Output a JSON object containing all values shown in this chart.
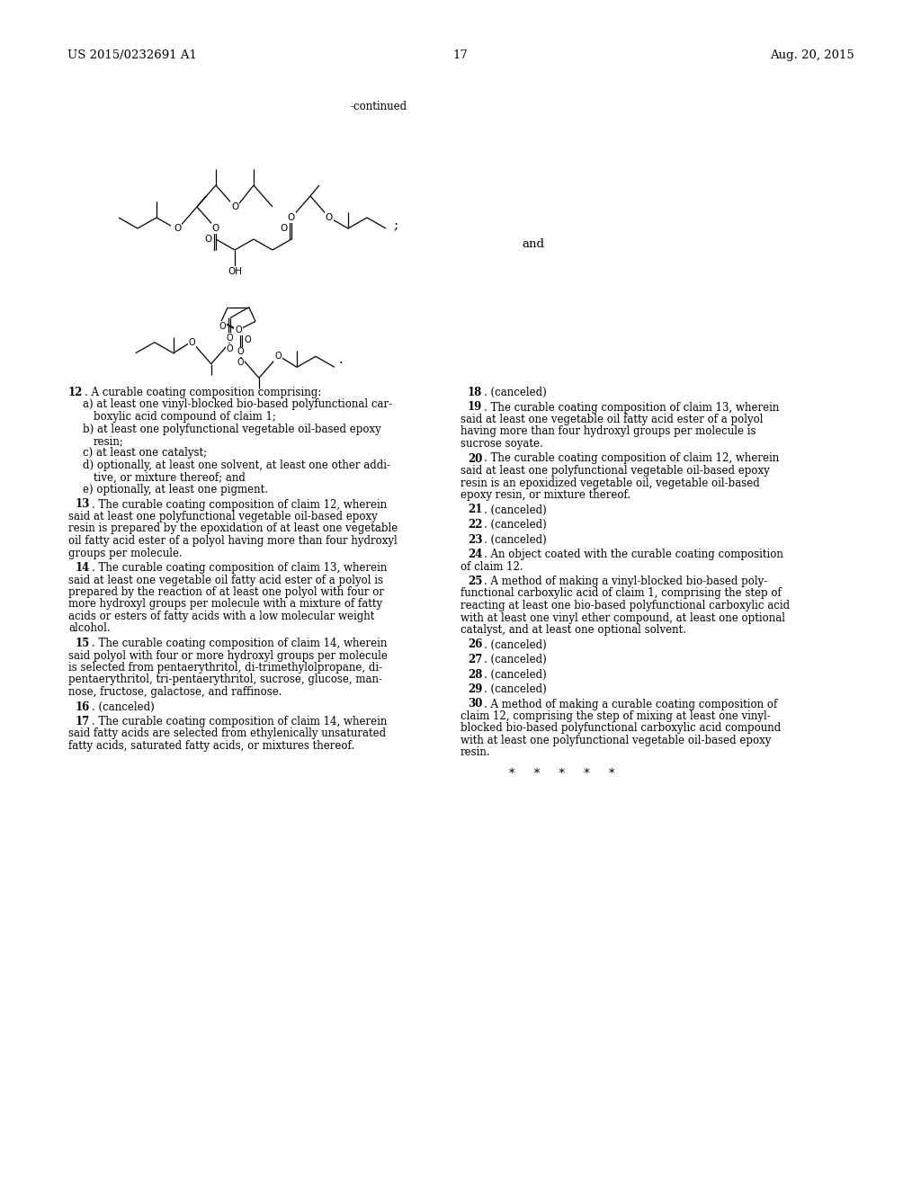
{
  "header_left": "US 2015/0232691 A1",
  "header_right": "Aug. 20, 2015",
  "page_number": "17",
  "continued_label": "-continued",
  "and_label": "and",
  "semicolon": ";",
  "period": ".",
  "background_color": "#ffffff",
  "text_color": "#000000",
  "stars": "*     *     *     *     *",
  "fs_body": 8.5,
  "fs_header": 9.5,
  "lh": 0.0148
}
